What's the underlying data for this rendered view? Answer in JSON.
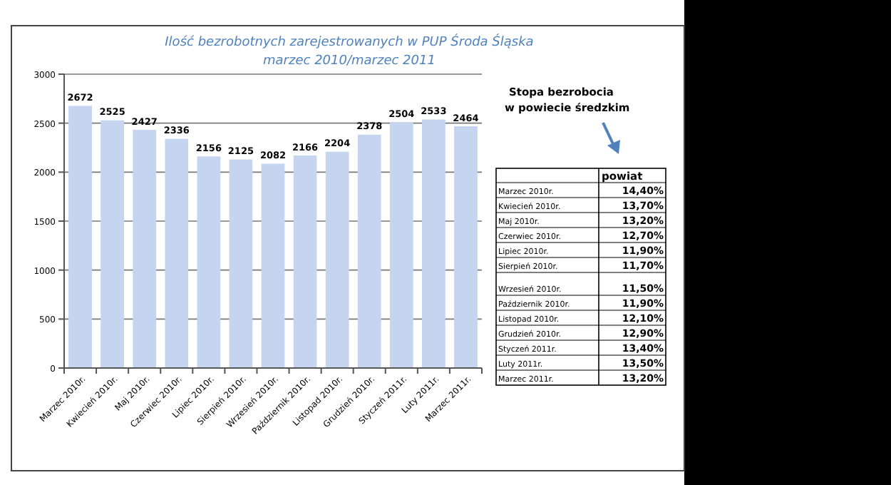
{
  "chart_data": [
    {
      "type": "bar",
      "title": "Ilość bezrobotnych zarejestrowanych  w PUP Środa Śląska",
      "subtitle": "marzec 2010/marzec 2011",
      "categories": [
        "Marzec 2010r.",
        "Kwiecień 2010r.",
        "Maj 2010r.",
        "Czerwiec 2010r.",
        "Lipiec 2010r.",
        "Sierpień 2010r.",
        "Wrzesień 2010r.",
        "Październik 2010r.",
        "Listopad 2010r.",
        "Grudzień 2010r.",
        "Styczeń 2011r.",
        "Luty 2011r.",
        "Marzec 2011r."
      ],
      "values": [
        2672,
        2525,
        2427,
        2336,
        2156,
        2125,
        2082,
        2166,
        2204,
        2378,
        2504,
        2533,
        2464
      ],
      "color": "#c5d5ef",
      "ylim": [
        0,
        3000
      ],
      "yticks": [
        0,
        500,
        1000,
        1500,
        2000,
        2500,
        3000
      ],
      "grid": "y",
      "data_labels": true
    },
    {
      "type": "other",
      "title": "Stopa bezrobocia w powiecie średzkim",
      "categories": [
        "Marzec 2010r.",
        "Kwiecień 2010r.",
        "Maj 2010r.",
        "Czerwiec 2010r.",
        "Lipiec 2010r.",
        "Sierpień 2010r.",
        "Wrzesień 2010r.",
        "Październik 2010r.",
        "Listopad 2010r.",
        "Grudzień 2010r.",
        "Styczeń 2011r.",
        "Luty 2011r.",
        "Marzec 2011r."
      ],
      "series": [
        {
          "name": "powiat",
          "values": [
            14.4,
            13.7,
            13.2,
            12.7,
            11.9,
            11.7,
            11.5,
            11.9,
            12.1,
            12.9,
            13.4,
            13.5,
            13.2
          ],
          "value_labels": [
            "14,40%",
            "13,70%",
            "13,20%",
            "12,70%",
            "11,90%",
            "11,70%",
            "11,50%",
            "11,90%",
            "12,10%",
            "12,90%",
            "13,40%",
            "13,50%",
            "13,20%"
          ]
        }
      ]
    }
  ]
}
